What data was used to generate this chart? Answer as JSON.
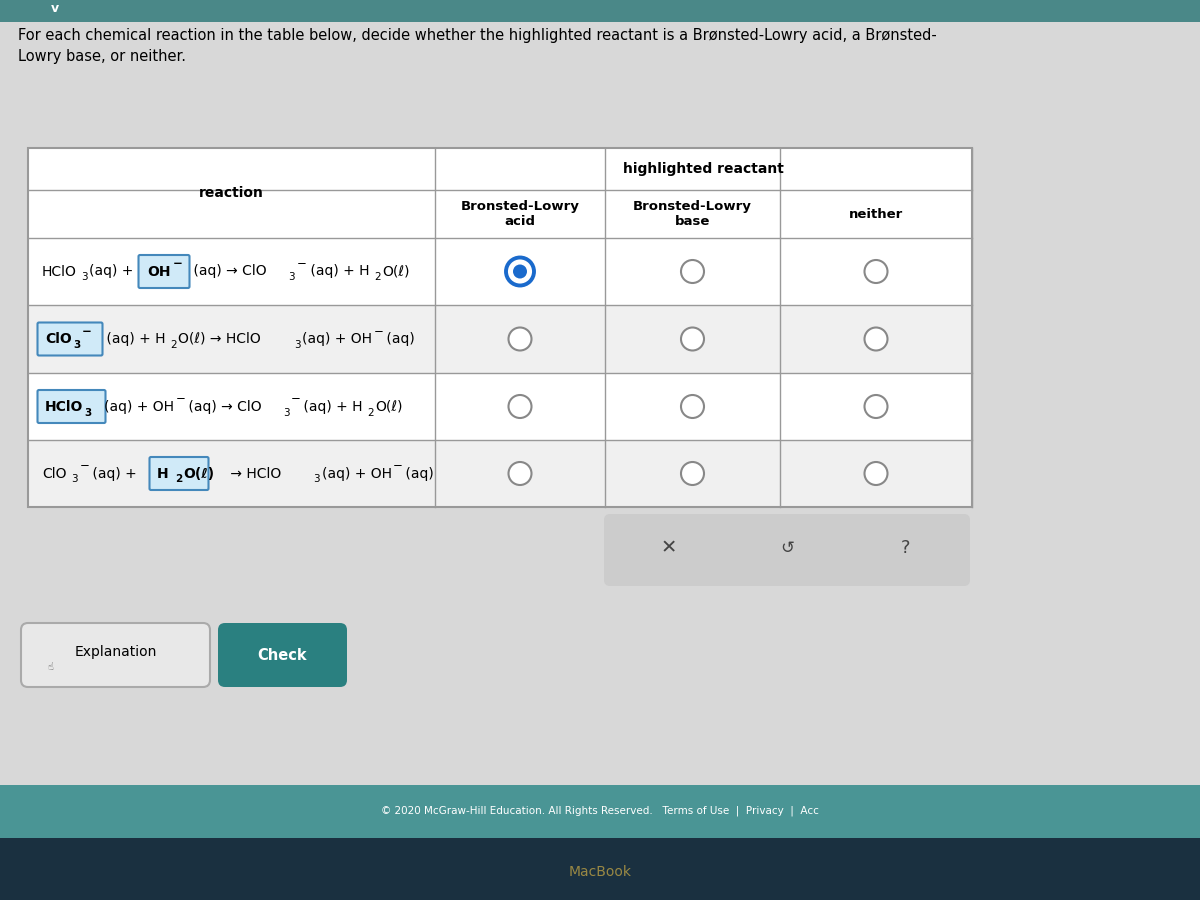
{
  "bg_color": "#cccccc",
  "content_bg": "#d4d4d4",
  "table_bg": "#ffffff",
  "teal_color": "#3a8a8a",
  "footer_teal": "#4a9595",
  "footer_dark": "#1a3040",
  "check_color": "#2a8080",
  "title_text": "For each chemical reaction in the table below, decide whether the highlighted reactant is a Brønsted-Lowry acid, a Brønsted-\nLowry base, or neither.",
  "header_col": "highlighted reactant",
  "col1_header": "reaction",
  "col2_header": "Bronsted-Lowry\nacid",
  "col3_header": "Bronsted-Lowry\nbase",
  "col4_header": "neither",
  "footer_text": "© 2020 McGraw-Hill Education. All Rights Reserved.   Terms of Use  |  Privacy  |  Acc",
  "macbook_text": "MacBook",
  "xmark": "✕",
  "undo": "↺",
  "question": "?",
  "selected": [
    [
      true,
      false,
      false
    ],
    [
      false,
      false,
      false
    ],
    [
      false,
      false,
      false
    ],
    [
      false,
      false,
      false
    ]
  ],
  "highlight_face": "#d0eaf8",
  "highlight_edge": "#4488bb",
  "radio_selected_edge": "#1a6acc",
  "radio_selected_fill": "#1a6acc",
  "radio_unselected_edge": "#888888"
}
